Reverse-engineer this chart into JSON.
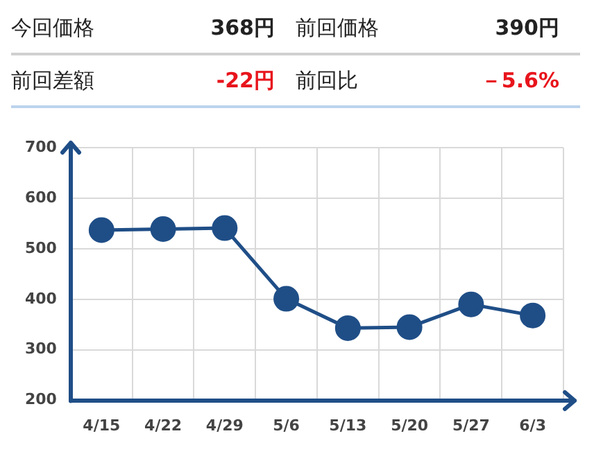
{
  "chart_data": {
    "type": "line",
    "annotations": [
      "今回価格",
      "368円",
      "前回価格",
      "390円",
      "前回差額",
      "-22円",
      "前回比",
      "－5.6%"
    ],
    "categories": [
      "4/15",
      "4/22",
      "4/29",
      "5/6",
      "5/13",
      "5/20",
      "5/27",
      "6/3"
    ],
    "series": [
      {
        "color": "#1f4e87",
        "values": [
          537,
          539,
          541,
          401,
          343,
          345,
          390,
          368
        ]
      }
    ],
    "ylim": [
      200,
      700
    ],
    "yticks": [
      200,
      300,
      400,
      500,
      600,
      700
    ],
    "grid": true,
    "marker": "circle",
    "line_style": "solid",
    "legend": false
  }
}
